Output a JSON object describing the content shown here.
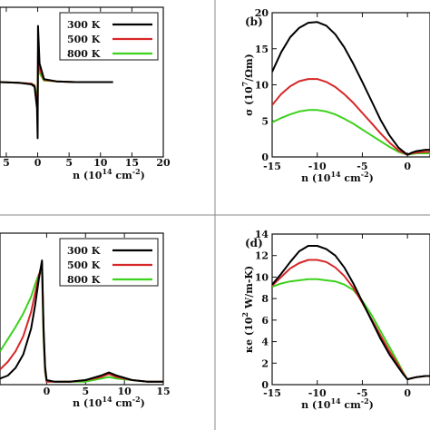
{
  "colors": {
    "300K": "#000000",
    "500K": "#d62728",
    "800K": "#3cd11d"
  },
  "chart_data": [
    {
      "id": "a",
      "type": "line",
      "title": "",
      "xlabel": "n (10^14 cm^-2)",
      "ylabel": "",
      "xlim": [
        -6,
        20
      ],
      "ylim": [
        -100,
        100
      ],
      "xticks": [
        "5",
        "0",
        "5",
        "10",
        "15",
        "20"
      ],
      "xtick_values": [
        -5,
        0,
        5,
        10,
        15,
        20
      ],
      "legend": [
        "300 K",
        "500 K",
        "800 K"
      ],
      "series": [
        {
          "name": "300 K",
          "x": [
            -6,
            -3,
            -1,
            -0.5,
            -0.1,
            0,
            0.05,
            0.3,
            1,
            3,
            6,
            12
          ],
          "y": [
            0,
            -1,
            -3,
            -6,
            -35,
            -75,
            75,
            25,
            4,
            1,
            0,
            0
          ]
        },
        {
          "name": "500 K",
          "x": [
            -6,
            -3,
            -1,
            -0.5,
            -0.1,
            0,
            0.05,
            0.3,
            1,
            3,
            6,
            12
          ],
          "y": [
            0,
            -1,
            -2,
            -5,
            -28,
            -40,
            40,
            18,
            3,
            1,
            0,
            0
          ]
        },
        {
          "name": "800 K",
          "x": [
            -6,
            -3,
            -1,
            -0.5,
            -0.1,
            0,
            0.05,
            0.3,
            1,
            3,
            6,
            12
          ],
          "y": [
            0,
            -1,
            -2,
            -4,
            -18,
            -22,
            22,
            12,
            2,
            1,
            0,
            0
          ]
        }
      ]
    },
    {
      "id": "b",
      "type": "line",
      "title": "",
      "panel_label": "(b)",
      "xlabel": "n (10^14 cm^-2)",
      "ylabel": "σ (10^7/Ωm)",
      "xlim": [
        -15,
        2.5
      ],
      "ylim": [
        0,
        20
      ],
      "xticks": [
        "-15",
        "-10",
        "-5",
        "0"
      ],
      "xtick_values": [
        -15,
        -10,
        -5,
        0
      ],
      "yticks": [
        "0",
        "5",
        "10",
        "15",
        "20"
      ],
      "ytick_values": [
        0,
        5,
        10,
        15,
        20
      ],
      "series": [
        {
          "name": "300 K",
          "x": [
            -15,
            -14,
            -13,
            -12,
            -11,
            -10,
            -9,
            -8,
            -7,
            -6,
            -5,
            -4,
            -3,
            -2,
            -1,
            0,
            0.5,
            1,
            2,
            2.5
          ],
          "y": [
            11.8,
            14.5,
            16.6,
            17.9,
            18.6,
            18.7,
            18.2,
            17.0,
            15.2,
            12.9,
            10.4,
            7.8,
            5.2,
            3.0,
            1.3,
            0.3,
            0.6,
            0.8,
            1.0,
            1.0
          ]
        },
        {
          "name": "500 K",
          "x": [
            -15,
            -14,
            -13,
            -12,
            -11,
            -10,
            -9,
            -8,
            -7,
            -6,
            -5,
            -4,
            -3,
            -2,
            -1,
            0,
            0.5,
            1,
            2,
            2.5
          ],
          "y": [
            7.2,
            8.7,
            9.8,
            10.5,
            10.8,
            10.8,
            10.4,
            9.7,
            8.7,
            7.5,
            6.1,
            4.7,
            3.3,
            2.0,
            0.9,
            0.3,
            0.5,
            0.6,
            0.7,
            0.7
          ]
        },
        {
          "name": "800 K",
          "x": [
            -15,
            -14,
            -13,
            -12,
            -11,
            -10,
            -9,
            -8,
            -7,
            -6,
            -5,
            -4,
            -3,
            -2,
            -1,
            0,
            0.5,
            1,
            2,
            2.5
          ],
          "y": [
            4.8,
            5.4,
            5.9,
            6.3,
            6.5,
            6.5,
            6.3,
            5.9,
            5.3,
            4.6,
            3.8,
            3.0,
            2.2,
            1.4,
            0.7,
            0.3,
            0.4,
            0.5,
            0.5,
            0.5
          ]
        }
      ]
    },
    {
      "id": "c",
      "type": "line",
      "title": "",
      "xlabel": "n (10^14 cm^-2)",
      "ylabel": "",
      "xlim": [
        -6,
        15
      ],
      "ylim": [
        0,
        100
      ],
      "xticks": [
        "0",
        "5",
        "10",
        "15"
      ],
      "xtick_values": [
        0,
        5,
        10,
        15
      ],
      "legend": [
        "300 K",
        "500 K",
        "800 K"
      ],
      "series": [
        {
          "name": "300 K",
          "x": [
            -6,
            -5,
            -4,
            -3,
            -2,
            -1.5,
            -1,
            -0.6,
            -0.4,
            -0.2,
            0,
            1,
            3,
            5,
            7,
            8,
            9,
            11,
            13,
            15
          ],
          "y": [
            4,
            6,
            11,
            20,
            37,
            52,
            70,
            82,
            38,
            12,
            3,
            2,
            2,
            3,
            6,
            8,
            6,
            3,
            2,
            2
          ]
        },
        {
          "name": "500 K",
          "x": [
            -6,
            -5,
            -4,
            -3,
            -2,
            -1.5,
            -1,
            -0.6,
            -0.4,
            -0.2,
            0,
            1,
            3,
            5,
            7,
            8,
            9,
            11,
            13,
            15
          ],
          "y": [
            10,
            15,
            22,
            32,
            48,
            60,
            72,
            80,
            35,
            10,
            2,
            2,
            2,
            3,
            5,
            7,
            5,
            3,
            2,
            2
          ]
        },
        {
          "name": "800 K",
          "x": [
            -6,
            -5,
            -4,
            -3,
            -2,
            -1.5,
            -1,
            -0.6,
            -0.4,
            -0.2,
            0,
            1,
            3,
            5,
            7,
            8,
            9,
            11,
            13,
            15
          ],
          "y": [
            22,
            30,
            38,
            47,
            58,
            66,
            73,
            74,
            30,
            8,
            2,
            2,
            2,
            2,
            4,
            5,
            4,
            3,
            2,
            2
          ]
        }
      ]
    },
    {
      "id": "d",
      "type": "line",
      "title": "",
      "panel_label": "(d)",
      "xlabel": "n (10^14 cm^-2)",
      "ylabel": "κe (10^2 W/m-K)",
      "xlim": [
        -15,
        2.5
      ],
      "ylim": [
        0,
        14
      ],
      "xticks": [
        "-15",
        "-10",
        "-5",
        "0"
      ],
      "xtick_values": [
        -15,
        -10,
        -5,
        0
      ],
      "yticks": [
        "0",
        "2",
        "4",
        "6",
        "8",
        "10",
        "12",
        "14"
      ],
      "ytick_values": [
        0,
        2,
        4,
        6,
        8,
        10,
        12,
        14
      ],
      "series": [
        {
          "name": "300 K",
          "x": [
            -15,
            -14,
            -13,
            -12,
            -11,
            -10,
            -9,
            -8,
            -7,
            -6,
            -5,
            -4,
            -3,
            -2,
            -1,
            -0.5,
            0,
            0.5,
            1,
            2,
            2.5
          ],
          "y": [
            9.3,
            10.3,
            11.4,
            12.4,
            12.9,
            12.9,
            12.6,
            12.0,
            10.9,
            9.4,
            7.7,
            6.0,
            4.3,
            2.8,
            1.6,
            1.0,
            0.5,
            0.6,
            0.7,
            0.8,
            0.8
          ]
        },
        {
          "name": "500 K",
          "x": [
            -15,
            -14,
            -13,
            -12,
            -11,
            -10,
            -9,
            -8,
            -7,
            -6,
            -5,
            -4,
            -3,
            -2,
            -1,
            -0.5,
            0,
            0.5,
            1,
            2,
            2.5
          ],
          "y": [
            9.2,
            10.0,
            10.8,
            11.3,
            11.6,
            11.6,
            11.4,
            10.9,
            10.1,
            9.0,
            7.6,
            6.1,
            4.6,
            3.1,
            1.8,
            1.1,
            0.5,
            0.6,
            0.7,
            0.8,
            0.8
          ]
        },
        {
          "name": "800 K",
          "x": [
            -15,
            -14,
            -13,
            -12,
            -11,
            -10,
            -9,
            -8,
            -7,
            -6,
            -5,
            -4,
            -3,
            -2,
            -1,
            -0.5,
            0,
            0.5,
            1,
            2,
            2.5
          ],
          "y": [
            9.1,
            9.4,
            9.6,
            9.7,
            9.8,
            9.8,
            9.7,
            9.6,
            9.3,
            8.8,
            7.8,
            6.5,
            5.0,
            3.5,
            2.0,
            1.2,
            0.5,
            0.6,
            0.7,
            0.8,
            0.8
          ]
        }
      ]
    }
  ]
}
